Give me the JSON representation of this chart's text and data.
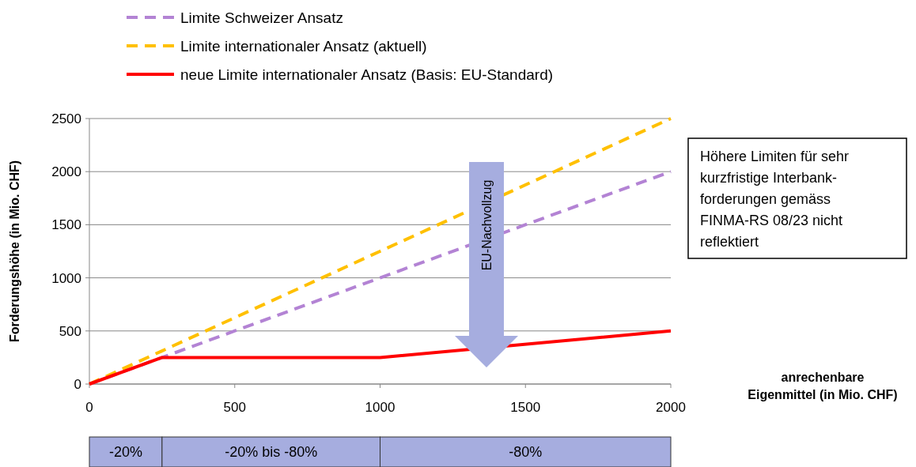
{
  "chart_data": {
    "type": "line",
    "xlabel": "anrechenbare\nEigenmittel (in Mio. CHF)",
    "ylabel": "Forderungshöhe (in Mio. CHF)",
    "x": [
      0,
      250,
      1000,
      2000
    ],
    "series": [
      {
        "name": "Limite Schweizer Ansatz",
        "color": "#b383d4",
        "line_style": "dashed",
        "values": [
          0,
          250,
          1000,
          2000
        ]
      },
      {
        "name": "Limite internationaler Ansatz (aktuell)",
        "color": "#ffc000",
        "line_style": "dashed",
        "values": [
          0,
          312,
          1250,
          2500
        ]
      },
      {
        "name": "neue Limite internationaler Ansatz (Basis: EU-Standard)",
        "color": "#ff0000",
        "line_style": "solid",
        "values": [
          0,
          250,
          250,
          500
        ]
      }
    ],
    "xlim": [
      0,
      2000
    ],
    "xticks": [
      0,
      500,
      1000,
      1500,
      2000
    ],
    "ylim": [
      0,
      2500
    ],
    "yticks": [
      0,
      500,
      1000,
      1500,
      2000,
      2500
    ],
    "grid": "y",
    "legend": "top left",
    "annotations": [
      "-20%",
      "-20% bis -80%",
      "-80%",
      "EU-Nachvollzug",
      "Höhere Limiten für sehr\nkurzfristige Interbank-\nforderungen gemäss\nFINMA-RS 08/23 nicht\nreflektiert"
    ]
  }
}
